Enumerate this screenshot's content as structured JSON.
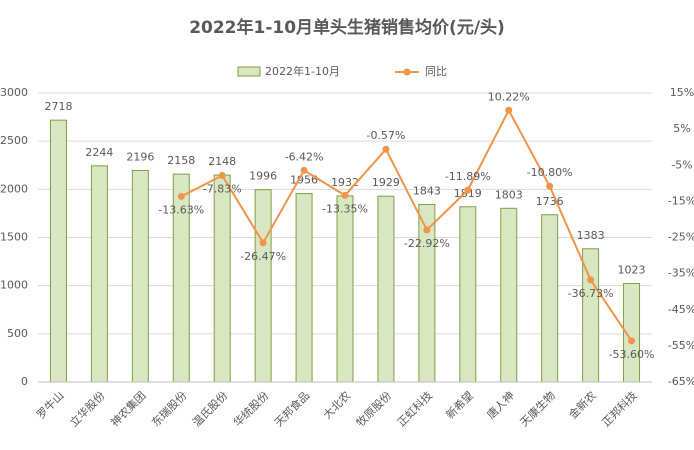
{
  "chart_data": {
    "type": "bar",
    "title": "2022年1-10月单头生猪销售均价(元/头)",
    "categories": [
      "罗牛山",
      "立华股份",
      "神农集团",
      "东瑞股份",
      "温氏股份",
      "华统股份",
      "天邦食品",
      "大北农",
      "牧原股份",
      "正虹科技",
      "新希望",
      "唐人神",
      "天康生物",
      "金新农",
      "正邦科技"
    ],
    "series": [
      {
        "name": "2022年1-10月",
        "type": "bar",
        "color": "#d8e6c2",
        "values": [
          2718,
          2244,
          2196,
          2158,
          2148,
          1996,
          1956,
          1932,
          1929,
          1843,
          1819,
          1803,
          1736,
          1383,
          1023
        ]
      },
      {
        "name": "同比",
        "type": "line",
        "axis": "y2",
        "color": "#f0944a",
        "values": [
          null,
          null,
          null,
          -13.63,
          -7.83,
          -26.47,
          -6.42,
          -13.35,
          -0.57,
          -22.92,
          -11.89,
          10.22,
          -10.8,
          -36.73,
          -53.6
        ],
        "value_labels": [
          null,
          null,
          null,
          "-13.63%",
          "-7.83%",
          "-26.47%",
          "-6.42%",
          "-13.35%",
          "-0.57%",
          "-22.92%",
          "-11.89%",
          "10.22%",
          "-10.80%",
          "-36.73%",
          "-53.60%"
        ]
      }
    ],
    "ylim": [
      0,
      3000
    ],
    "yticks": [
      0,
      500,
      1000,
      1500,
      2000,
      2500,
      3000
    ],
    "y2lim": [
      -65,
      15
    ],
    "y2ticks": [
      {
        "value": -65,
        "label": "-65%"
      },
      {
        "value": -55,
        "label": "-55%"
      },
      {
        "value": -45,
        "label": "-45%"
      },
      {
        "value": -35,
        "label": "-35%"
      },
      {
        "value": -25,
        "label": "-25%"
      },
      {
        "value": -15,
        "label": "-15%"
      },
      {
        "value": -5,
        "label": "-5%"
      },
      {
        "value": 5,
        "label": "5%"
      },
      {
        "value": 15,
        "label": "15%"
      }
    ],
    "grid": true
  }
}
